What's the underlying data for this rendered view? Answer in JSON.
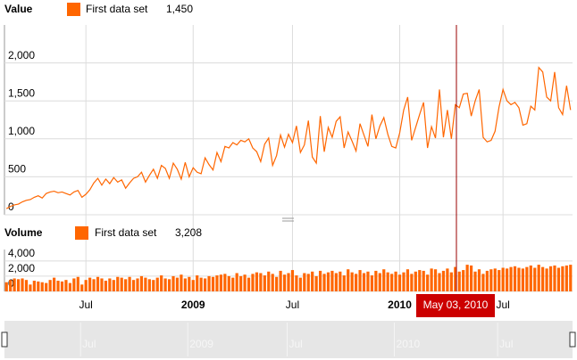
{
  "chart_data": [
    {
      "type": "line",
      "title": "Value",
      "legend_value": "1,450",
      "cursor": "May 03, 2010",
      "categories": [
        null,
        null,
        null,
        null,
        null,
        null,
        null,
        null,
        null,
        null,
        null,
        null,
        null,
        null,
        null,
        null,
        null,
        null,
        null,
        null,
        "Jul",
        null,
        null,
        null,
        null,
        null,
        null,
        null,
        null,
        null,
        null,
        null,
        null,
        null,
        null,
        null,
        null,
        null,
        null,
        null,
        null,
        null,
        null,
        null,
        null,
        null,
        null,
        "2009",
        null,
        null,
        null,
        null,
        null,
        null,
        null,
        null,
        null,
        null,
        null,
        null,
        null,
        null,
        null,
        null,
        null,
        null,
        null,
        null,
        null,
        null,
        null,
        null,
        "Jul",
        null,
        null,
        null,
        null,
        null,
        null,
        null,
        null,
        null,
        null,
        null,
        null,
        null,
        null,
        null,
        null,
        null,
        null,
        null,
        null,
        null,
        null,
        null,
        null,
        null,
        null,
        "2010",
        null,
        null,
        null,
        null,
        null,
        null,
        null,
        null,
        null,
        null,
        null,
        null,
        null,
        null,
        null,
        null,
        null,
        null,
        null,
        null,
        null,
        null,
        null,
        null,
        null,
        "Jul",
        null,
        null,
        null,
        null,
        null,
        null,
        null,
        null,
        null,
        null,
        null,
        null,
        null,
        null,
        null,
        null,
        null
      ],
      "series": [
        {
          "name": "First data set",
          "color": "#ff6600",
          "values": [
            80,
            110,
            130,
            140,
            170,
            190,
            200,
            230,
            250,
            220,
            280,
            300,
            310,
            290,
            300,
            280,
            260,
            300,
            320,
            230,
            270,
            330,
            420,
            480,
            390,
            470,
            410,
            490,
            430,
            460,
            350,
            420,
            480,
            500,
            560,
            430,
            520,
            600,
            480,
            650,
            610,
            480,
            680,
            600,
            470,
            690,
            500,
            620,
            560,
            540,
            750,
            660,
            590,
            820,
            700,
            900,
            880,
            950,
            920,
            980,
            960,
            1000,
            880,
            830,
            700,
            930,
            1010,
            650,
            780,
            1050,
            890,
            1060,
            950,
            1170,
            820,
            920,
            1240,
            760,
            680,
            1300,
            830,
            1150,
            1020,
            1230,
            1290,
            880,
            1090,
            970,
            840,
            1200,
            1050,
            900,
            1320,
            1000,
            1170,
            1280,
            1060,
            900,
            880,
            1080,
            1380,
            1550,
            980,
            1150,
            1320,
            1480,
            880,
            1160,
            1010,
            1650,
            1020,
            1380,
            1000,
            1450,
            1410,
            1590,
            1600,
            1300,
            1500,
            1650,
            1020,
            960,
            980,
            1100,
            1420,
            1650,
            1500,
            1450,
            1480,
            1410,
            1180,
            1200,
            1430,
            1380,
            1940,
            1880,
            1550,
            1500,
            1880,
            1410,
            1320,
            1700,
            1380
          ]
        }
      ],
      "ylim": [
        0,
        2500
      ],
      "yticks": [
        0,
        500,
        {
          "value": 1000,
          "label": "1,000"
        },
        {
          "value": 1500,
          "label": "1,500"
        },
        {
          "value": 2000,
          "label": "2,000"
        }
      ],
      "grid": true
    },
    {
      "type": "bar",
      "title": "Volume",
      "legend_value": "3,208",
      "series": [
        {
          "name": "First data set",
          "color": "#ff6600",
          "values": [
            1200,
            1500,
            1700,
            1600,
            1700,
            1500,
            900,
            1400,
            1300,
            1200,
            1100,
            1500,
            1800,
            1400,
            1300,
            1500,
            1100,
            1700,
            1900,
            900,
            1500,
            1800,
            1600,
            1900,
            1700,
            1400,
            1700,
            1500,
            1900,
            1800,
            1600,
            1900,
            1500,
            1700,
            2000,
            1800,
            1600,
            1500,
            1800,
            2100,
            1700,
            1600,
            2000,
            1800,
            2200,
            1700,
            1900,
            1500,
            2100,
            1800,
            1700,
            2000,
            1900,
            2100,
            2200,
            2300,
            2000,
            1800,
            2400,
            2000,
            2200,
            1800,
            2300,
            2500,
            2400,
            2100,
            2600,
            2300,
            1900,
            2700,
            2200,
            2400,
            2800,
            2100,
            1800,
            2400,
            2300,
            2600,
            2000,
            2700,
            2300,
            2500,
            2700,
            2400,
            2600,
            2100,
            2900,
            2500,
            2300,
            2800,
            2400,
            2600,
            2100,
            2700,
            2400,
            2900,
            2500,
            2300,
            2600,
            2200,
            2500,
            2900,
            2300,
            2600,
            2800,
            2700,
            2200,
            3000,
            2900,
            2400,
            2700,
            3000,
            2500,
            3208,
            2600,
            2800,
            3500,
            3400,
            2600,
            2900,
            2300,
            2700,
            2900,
            3000,
            2800,
            3100,
            3000,
            3200,
            3300,
            3100,
            3000,
            3200,
            3400,
            3100,
            3500,
            3200,
            3000,
            3300,
            3400,
            3100,
            3300,
            3400,
            3500
          ]
        }
      ],
      "ylim": [
        0,
        5500
      ],
      "yticks": [
        0,
        {
          "value": 2000,
          "label": "2,000"
        },
        {
          "value": 4000,
          "label": "4,000"
        }
      ],
      "grid": true
    }
  ]
}
